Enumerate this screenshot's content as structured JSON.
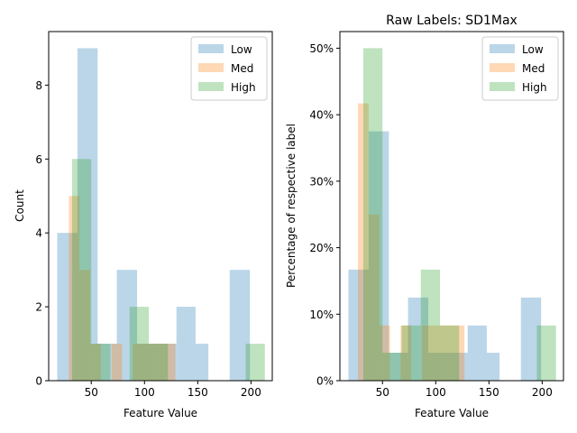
{
  "chart_data": [
    {
      "type": "bar",
      "title": "",
      "xlabel": "Feature Value",
      "ylabel": "Count",
      "xlim": [
        10,
        220
      ],
      "ylim": [
        0,
        9.45
      ],
      "xticks": [
        50,
        100,
        150,
        200
      ],
      "yticks": [
        0,
        2,
        4,
        6,
        8
      ],
      "ytick_labels": [
        "0",
        "2",
        "4",
        "6",
        "8"
      ],
      "legend_position": "top-right",
      "series": [
        {
          "name": "Low",
          "color": "#1f77b4",
          "opacity": 0.3,
          "bins": [
            [
              18,
              37,
              4
            ],
            [
              37,
              56,
              9
            ],
            [
              56,
              74,
              1
            ],
            [
              74,
              93,
              3
            ],
            [
              93,
              111,
              1
            ],
            [
              111,
              130,
              1
            ],
            [
              130,
              148,
              2
            ],
            [
              148,
              160,
              1
            ],
            [
              180,
              199,
              3
            ]
          ]
        },
        {
          "name": "Med",
          "color": "#ff7f0e",
          "opacity": 0.3,
          "bins": [
            [
              29,
              39,
              5
            ],
            [
              39,
              49,
              3
            ],
            [
              49,
              59,
              1
            ],
            [
              69,
              79,
              1
            ],
            [
              89,
              109,
              1
            ],
            [
              109,
              119,
              1
            ],
            [
              119,
              129,
              1
            ]
          ]
        },
        {
          "name": "High",
          "color": "#2ca02c",
          "opacity": 0.3,
          "bins": [
            [
              32,
              50,
              6
            ],
            [
              50,
              68,
              1
            ],
            [
              86,
              104,
              2
            ],
            [
              104,
              122,
              1
            ],
            [
              195,
              213,
              1
            ]
          ]
        }
      ]
    },
    {
      "type": "bar",
      "title": "Raw Labels: SD1Max",
      "xlabel": "Feature Value",
      "ylabel": "Percentage of respective label",
      "xlim": [
        10,
        220
      ],
      "ylim": [
        0,
        52.5
      ],
      "xticks": [
        50,
        100,
        150,
        200
      ],
      "yticks": [
        0,
        10,
        20,
        30,
        40,
        50
      ],
      "ytick_labels": [
        "0%",
        "10%",
        "20%",
        "30%",
        "40%",
        "50%"
      ],
      "legend_position": "top-right",
      "series": [
        {
          "name": "Low",
          "color": "#1f77b4",
          "opacity": 0.3,
          "bins": [
            [
              18,
              37,
              16.7
            ],
            [
              37,
              56,
              37.5
            ],
            [
              56,
              74,
              4.2
            ],
            [
              74,
              93,
              12.5
            ],
            [
              93,
              111,
              4.2
            ],
            [
              111,
              130,
              4.2
            ],
            [
              130,
              148,
              8.3
            ],
            [
              148,
              160,
              4.2
            ],
            [
              180,
              199,
              12.5
            ]
          ]
        },
        {
          "name": "Med",
          "color": "#ff7f0e",
          "opacity": 0.3,
          "bins": [
            [
              27,
              37,
              41.7
            ],
            [
              37,
              47,
              25.0
            ],
            [
              47,
              57,
              8.3
            ],
            [
              67,
              77,
              8.3
            ],
            [
              87,
              107,
              8.3
            ],
            [
              107,
              117,
              8.3
            ],
            [
              117,
              127,
              8.3
            ]
          ]
        },
        {
          "name": "High",
          "color": "#2ca02c",
          "opacity": 0.3,
          "bins": [
            [
              32,
              50,
              50.0
            ],
            [
              50,
              68,
              4.2
            ],
            [
              68,
              86,
              8.3
            ],
            [
              86,
              104,
              16.7
            ],
            [
              104,
              122,
              8.3
            ],
            [
              195,
              213,
              8.3
            ]
          ]
        }
      ]
    }
  ]
}
